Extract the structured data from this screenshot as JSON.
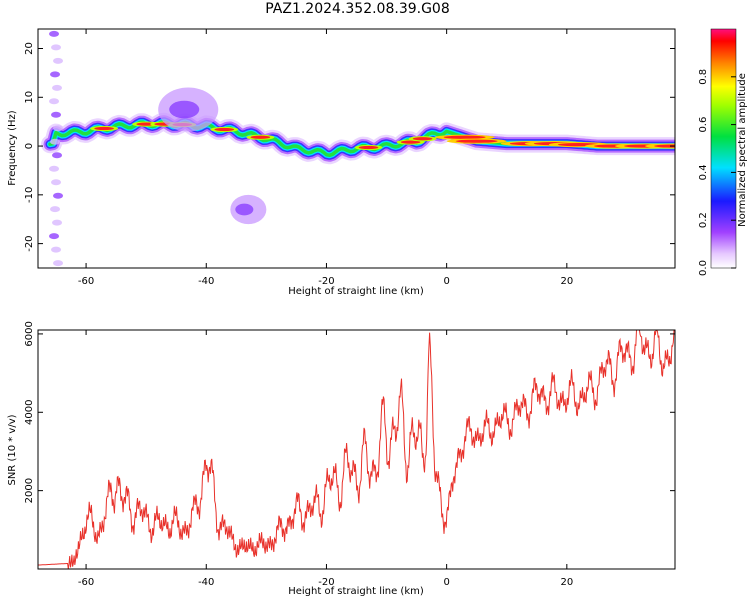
{
  "figure_title": "PAZ1.2024.352.08.39.G08",
  "chart_data": [
    {
      "type": "heatmap",
      "title": "PAZ1.2024.352.08.39.G08",
      "xlabel": "Height of straight line (km)",
      "ylabel": "Frequency (Hz)",
      "xlim": [
        -68,
        38
      ],
      "ylim": [
        -25,
        24
      ],
      "xticks": [
        -60,
        -40,
        -20,
        0,
        20
      ],
      "yticks": [
        20,
        10,
        0,
        -10,
        -20
      ],
      "colorbar": {
        "label": "Normalized spectral amplitude",
        "range": [
          0,
          1
        ],
        "ticks": [
          0.0,
          0.2,
          0.4,
          0.6,
          0.8
        ],
        "colormap": "rainbow (magenta-violet-blue-cyan-green-yellow-orange-red)"
      },
      "ridge": {
        "description": "main signal ridge: frequency (Hz) vs height (km)",
        "x": [
          -65,
          -60,
          -55,
          -50,
          -45,
          -40,
          -35,
          -30,
          -25,
          -20,
          -15,
          -10,
          -5,
          -2,
          0,
          5,
          10,
          15,
          20,
          25,
          30,
          38
        ],
        "y": [
          2.5,
          3,
          4,
          4.5,
          4.5,
          4,
          3,
          1.5,
          -0.5,
          -1.5,
          -0.5,
          0,
          1,
          2.5,
          3,
          1,
          0.5,
          0.5,
          0.5,
          0,
          0,
          0
        ]
      },
      "secondary_features": [
        {
          "x_range": [
            -48,
            -38
          ],
          "y_range": [
            3,
            12
          ],
          "note": "diffuse patch above ridge"
        },
        {
          "x_range": [
            -36,
            -30
          ],
          "y_range": [
            -16,
            -10
          ],
          "note": "isolated weak feature"
        },
        {
          "x_range": [
            -67,
            -63
          ],
          "y_range": [
            -24,
            23
          ],
          "note": "scattered low-amplitude noise column"
        }
      ]
    },
    {
      "type": "line",
      "xlabel": "Height of straight line (km)",
      "ylabel": "SNR (10 * v/v)",
      "xlim": [
        -68,
        38
      ],
      "ylim": [
        0,
        6100
      ],
      "xticks": [
        -60,
        -40,
        -20,
        0,
        20
      ],
      "yticks": [
        2000,
        4000,
        6000
      ],
      "color": "#e8312a",
      "series": [
        {
          "x": [
            -68,
            -62,
            -60,
            -58,
            -56,
            -55,
            -54,
            -52,
            -50,
            -48,
            -46,
            -44,
            -42,
            -40,
            -38,
            -36,
            -34,
            -32,
            -30,
            -28,
            -26,
            -24,
            -22,
            -20,
            -18,
            -16,
            -14,
            -12,
            -10,
            -8,
            -6,
            -4,
            -3,
            -2,
            0,
            2,
            4,
            6,
            8,
            10,
            12,
            14,
            16,
            18,
            20,
            22,
            24,
            26,
            28,
            30,
            32,
            34,
            36,
            38
          ],
          "y": [
            100,
            150,
            1300,
            900,
            1700,
            2500,
            1700,
            1500,
            1300,
            1100,
            1200,
            1000,
            1300,
            2800,
            1300,
            800,
            500,
            600,
            600,
            900,
            1300,
            1500,
            1500,
            2000,
            2300,
            2500,
            2600,
            2700,
            3500,
            3700,
            3300,
            3000,
            5500,
            2500,
            1300,
            3000,
            3500,
            3400,
            3700,
            3800,
            4000,
            4300,
            4500,
            4400,
            4400,
            4400,
            4500,
            5000,
            5200,
            5500,
            5800,
            5700,
            5400,
            5600
          ]
        }
      ]
    }
  ]
}
